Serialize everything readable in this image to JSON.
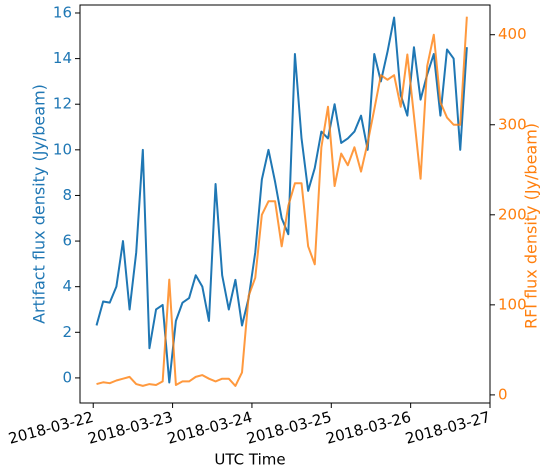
{
  "chart_data": {
    "type": "line",
    "xlabel": "UTC Time",
    "ylabel": "Artifact flux density (Jy/beam)",
    "y2label": "RFI flux density (Jy/beam)",
    "x": [
      "2018-03-22T01:00",
      "2018-03-22T03:00",
      "2018-03-22T05:00",
      "2018-03-22T07:00",
      "2018-03-22T09:00",
      "2018-03-22T11:00",
      "2018-03-22T13:00",
      "2018-03-22T15:00",
      "2018-03-22T17:00",
      "2018-03-22T19:00",
      "2018-03-22T21:00",
      "2018-03-22T23:00",
      "2018-03-23T01:00",
      "2018-03-23T03:00",
      "2018-03-23T05:00",
      "2018-03-23T07:00",
      "2018-03-23T09:00",
      "2018-03-23T11:00",
      "2018-03-23T13:00",
      "2018-03-23T15:00",
      "2018-03-23T17:00",
      "2018-03-23T19:00",
      "2018-03-23T21:00",
      "2018-03-23T23:00",
      "2018-03-24T01:00",
      "2018-03-24T03:00",
      "2018-03-24T05:00",
      "2018-03-24T07:00",
      "2018-03-24T09:00",
      "2018-03-24T11:00",
      "2018-03-24T13:00",
      "2018-03-24T15:00",
      "2018-03-24T17:00",
      "2018-03-24T19:00",
      "2018-03-24T21:00",
      "2018-03-24T23:00",
      "2018-03-25T01:00",
      "2018-03-25T03:00",
      "2018-03-25T05:00",
      "2018-03-25T07:00",
      "2018-03-25T09:00",
      "2018-03-25T11:00",
      "2018-03-25T13:00",
      "2018-03-25T15:00",
      "2018-03-25T17:00",
      "2018-03-25T19:00",
      "2018-03-25T21:00",
      "2018-03-25T23:00",
      "2018-03-26T01:00",
      "2018-03-26T03:00",
      "2018-03-26T05:00",
      "2018-03-26T07:00",
      "2018-03-26T09:00",
      "2018-03-26T11:00",
      "2018-03-26T13:00",
      "2018-03-26T15:00",
      "2018-03-26T17:00"
    ],
    "series": [
      {
        "name": "Artifact",
        "color": "#1f77b4",
        "axis": "y",
        "values": [
          2.3,
          3.35,
          3.3,
          4.0,
          6.0,
          3.0,
          5.5,
          10.0,
          1.3,
          3.0,
          3.2,
          -0.2,
          2.5,
          3.3,
          3.5,
          4.5,
          4.0,
          2.5,
          8.5,
          4.5,
          3.0,
          4.3,
          2.3,
          3.5,
          5.5,
          8.7,
          10.0,
          8.6,
          7.0,
          6.3,
          14.2,
          10.5,
          8.2,
          9.2,
          10.8,
          10.5,
          12.0,
          10.3,
          10.5,
          10.8,
          11.5,
          10.0,
          14.2,
          13.0,
          14.3,
          15.8,
          12.4,
          11.5,
          14.5,
          12.2,
          13.3,
          14.2,
          11.5,
          14.4,
          14.0,
          10.0,
          14.5
        ]
      },
      {
        "name": "RFI",
        "color": "#ff7f0e",
        "axis": "y2",
        "values": [
          12,
          14,
          13,
          16,
          18,
          20,
          12,
          10,
          12,
          11,
          15,
          128,
          11,
          15,
          15,
          20,
          22,
          18,
          15,
          18,
          18,
          10,
          25,
          110,
          130,
          200,
          215,
          215,
          165,
          210,
          235,
          235,
          165,
          145,
          275,
          320,
          232,
          268,
          255,
          275,
          248,
          280,
          317,
          355,
          350,
          355,
          320,
          378,
          310,
          240,
          365,
          400,
          325,
          308,
          300,
          300,
          420
        ]
      }
    ],
    "xlim": [
      "2018-03-21T20:00",
      "2018-03-27T00:00"
    ],
    "xticks": [
      "2018-03-22",
      "2018-03-23",
      "2018-03-24",
      "2018-03-25",
      "2018-03-26",
      "2018-03-27"
    ],
    "ylim": [
      -1.1,
      16.35
    ],
    "yticks": [
      0,
      2,
      4,
      6,
      8,
      10,
      12,
      14,
      16
    ],
    "y2lim": [
      -9,
      433
    ],
    "y2ticks": [
      0,
      100,
      200,
      300,
      400
    ]
  }
}
